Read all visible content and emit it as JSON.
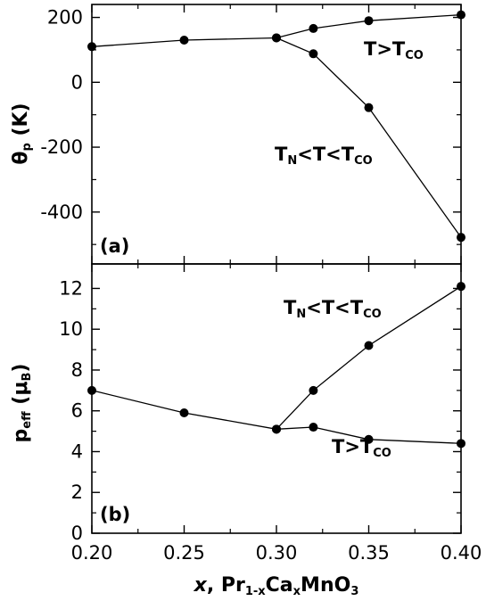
{
  "chart_data": [
    {
      "type": "line",
      "panel_label": "(a)",
      "ylabel_main": "θ",
      "ylabel_sub": "p",
      "ylabel_unit": " (K)",
      "ylim": [
        -560,
        240
      ],
      "yticks": [
        -400,
        -200,
        0,
        200
      ],
      "yticks_minor": [
        -500,
        -300,
        -100,
        100
      ],
      "series": [
        {
          "annotation": [
            [
              "T>T",
              ""
            ],
            [
              "CO",
              "sub"
            ]
          ],
          "x": [
            0.2,
            0.25,
            0.3,
            0.32,
            0.35,
            0.4
          ],
          "y": [
            110,
            130,
            137,
            166,
            190,
            208
          ]
        },
        {
          "annotation": [
            [
              "T",
              ""
            ],
            [
              "N",
              "sub"
            ],
            [
              "<T<T",
              ""
            ],
            [
              "CO",
              "sub"
            ]
          ],
          "x": [
            0.3,
            0.32,
            0.35,
            0.4
          ],
          "y": [
            137,
            88,
            -78,
            -478
          ]
        }
      ]
    },
    {
      "type": "line",
      "panel_label": "(b)",
      "ylabel_main": "p",
      "ylabel_sub": "eff",
      "ylabel_unit": " (μ",
      "ylabel_unit_sub": "B",
      "ylabel_unit_end": ")",
      "ylim": [
        0,
        13.2
      ],
      "yticks": [
        0,
        2,
        4,
        6,
        8,
        10,
        12
      ],
      "yticks_minor": [
        1,
        3,
        5,
        7,
        9,
        11
      ],
      "series": [
        {
          "annotation": [
            [
              "T",
              ""
            ],
            [
              "N",
              "sub"
            ],
            [
              "<T<T",
              ""
            ],
            [
              "CO",
              "sub"
            ]
          ],
          "x": [
            0.3,
            0.32,
            0.35,
            0.4
          ],
          "y": [
            5.1,
            7.0,
            9.2,
            12.1
          ]
        },
        {
          "annotation": [
            [
              "T>T",
              ""
            ],
            [
              "CO",
              "sub"
            ]
          ],
          "x": [
            0.2,
            0.25,
            0.3,
            0.32,
            0.35,
            0.4
          ],
          "y": [
            7.0,
            5.9,
            5.1,
            5.2,
            4.6,
            4.4
          ]
        }
      ]
    }
  ],
  "x_axis": {
    "xlim": [
      0.2,
      0.4
    ],
    "ticks": [
      0.2,
      0.25,
      0.3,
      0.35,
      0.4
    ],
    "tick_labels": [
      "0.20",
      "0.25",
      "0.30",
      "0.35",
      "0.40"
    ],
    "minor_ticks": [
      0.225,
      0.275,
      0.325,
      0.375
    ],
    "label": [
      [
        "x",
        "italic"
      ],
      [
        ", Pr",
        ""
      ],
      [
        "1-x",
        "sub"
      ],
      [
        "Ca",
        ""
      ],
      [
        "x",
        "sub"
      ],
      [
        "MnO",
        ""
      ],
      [
        "3",
        "sub"
      ]
    ]
  }
}
